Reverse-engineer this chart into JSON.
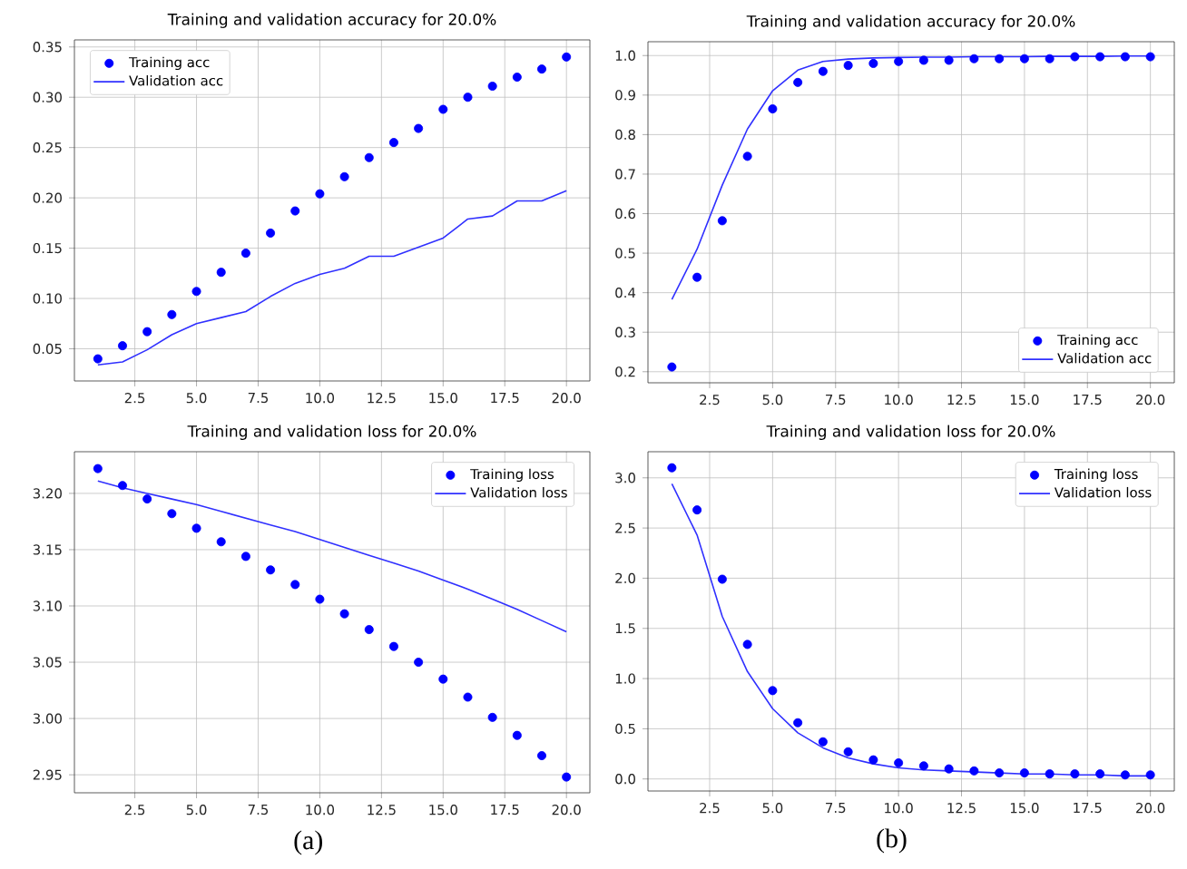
{
  "chart_data": [
    {
      "type": "line",
      "title": "Training and validation accuracy for 20.0%",
      "x": [
        1,
        2,
        3,
        4,
        5,
        6,
        7,
        8,
        9,
        10,
        11,
        12,
        13,
        14,
        15,
        16,
        17,
        18,
        19,
        20
      ],
      "xlim": [
        0.05,
        20.95
      ],
      "ylim": [
        0.018,
        0.357
      ],
      "xticks": [
        {
          "value": 2.5,
          "label": "2.5"
        },
        {
          "value": 5,
          "label": "5.0"
        },
        {
          "value": 7.5,
          "label": "7.5"
        },
        {
          "value": 10,
          "label": "10.0"
        },
        {
          "value": 12.5,
          "label": "12.5"
        },
        {
          "value": 15,
          "label": "15.0"
        },
        {
          "value": 17.5,
          "label": "17.5"
        },
        {
          "value": 20,
          "label": "20.0"
        }
      ],
      "yticks": [
        0.05,
        {
          "value": 0.1,
          "label": "0.10"
        },
        0.15,
        {
          "value": 0.2,
          "label": "0.20"
        },
        0.25,
        {
          "value": 0.3,
          "label": "0.30"
        },
        0.35
      ],
      "grid": true,
      "legend": "top left",
      "series": [
        {
          "name": "Training acc",
          "type": "scatter",
          "marker": "circle",
          "color": "#0000ff",
          "values": [
            0.04,
            0.053,
            0.067,
            0.084,
            0.107,
            0.126,
            0.145,
            0.165,
            0.187,
            0.204,
            0.221,
            0.24,
            0.255,
            0.269,
            0.288,
            0.3,
            0.311,
            0.32,
            0.328,
            0.34
          ]
        },
        {
          "name": "Validation acc",
          "type": "line",
          "color": "#3030ff",
          "values": [
            0.034,
            0.037,
            0.049,
            0.064,
            0.075,
            0.081,
            0.087,
            0.102,
            0.115,
            0.124,
            0.13,
            0.142,
            0.142,
            0.151,
            0.16,
            0.179,
            0.182,
            0.197,
            0.197,
            0.207
          ]
        }
      ]
    },
    {
      "type": "line",
      "title": "Training and validation accuracy for 20.0%",
      "x": [
        1,
        2,
        3,
        4,
        5,
        6,
        7,
        8,
        9,
        10,
        11,
        12,
        13,
        14,
        15,
        16,
        17,
        18,
        19,
        20
      ],
      "xlim": [
        0.05,
        20.95
      ],
      "ylim": [
        0.172,
        1.035
      ],
      "xticks": [
        {
          "value": 2.5,
          "label": "2.5"
        },
        {
          "value": 5,
          "label": "5.0"
        },
        {
          "value": 7.5,
          "label": "7.5"
        },
        {
          "value": 10,
          "label": "10.0"
        },
        {
          "value": 12.5,
          "label": "12.5"
        },
        {
          "value": 15,
          "label": "15.0"
        },
        {
          "value": 17.5,
          "label": "17.5"
        },
        {
          "value": 20,
          "label": "20.0"
        }
      ],
      "yticks": [
        0.2,
        0.3,
        0.4,
        0.5,
        0.6,
        0.7,
        0.8,
        0.9,
        {
          "value": 1,
          "label": "1.0"
        }
      ],
      "grid": true,
      "legend": "bottom right",
      "series": [
        {
          "name": "Training acc",
          "type": "scatter",
          "marker": "circle",
          "color": "#0000ff",
          "values": [
            0.212,
            0.439,
            0.582,
            0.745,
            0.865,
            0.932,
            0.96,
            0.975,
            0.98,
            0.985,
            0.988,
            0.988,
            0.992,
            0.992,
            0.992,
            0.992,
            0.997,
            0.997,
            0.997,
            0.997
          ]
        },
        {
          "name": "Validation acc",
          "type": "line",
          "color": "#3030ff",
          "values": [
            0.383,
            0.51,
            0.672,
            0.814,
            0.911,
            0.963,
            0.985,
            0.991,
            0.994,
            0.995,
            0.996,
            0.996,
            0.997,
            0.997,
            0.997,
            0.998,
            0.998,
            0.998,
            0.999,
            0.999
          ]
        }
      ]
    },
    {
      "type": "line",
      "title": "Training and validation loss for 20.0%",
      "x": [
        1,
        2,
        3,
        4,
        5,
        6,
        7,
        8,
        9,
        10,
        11,
        12,
        13,
        14,
        15,
        16,
        17,
        18,
        19,
        20
      ],
      "xlim": [
        0.05,
        20.95
      ],
      "ylim": [
        2.934,
        3.237
      ],
      "xticks": [
        {
          "value": 2.5,
          "label": "2.5"
        },
        {
          "value": 5,
          "label": "5.0"
        },
        {
          "value": 7.5,
          "label": "7.5"
        },
        {
          "value": 10,
          "label": "10.0"
        },
        {
          "value": 12.5,
          "label": "12.5"
        },
        {
          "value": 15,
          "label": "15.0"
        },
        {
          "value": 17.5,
          "label": "17.5"
        },
        {
          "value": 20,
          "label": "20.0"
        }
      ],
      "yticks": [
        2.95,
        {
          "value": 3,
          "label": "3.00"
        },
        3.05,
        {
          "value": 3.1,
          "label": "3.10"
        },
        3.15,
        {
          "value": 3.2,
          "label": "3.20"
        }
      ],
      "grid": true,
      "legend": "top right",
      "annotations": [
        "(a)"
      ],
      "series": [
        {
          "name": "Training loss",
          "type": "scatter",
          "marker": "circle",
          "color": "#0000ff",
          "values": [
            3.222,
            3.207,
            3.195,
            3.182,
            3.169,
            3.157,
            3.144,
            3.132,
            3.119,
            3.106,
            3.093,
            3.079,
            3.064,
            3.05,
            3.035,
            3.019,
            3.001,
            2.985,
            2.967,
            2.948
          ]
        },
        {
          "name": "Validation loss",
          "type": "line",
          "color": "#3030ff",
          "values": [
            3.211,
            3.205,
            3.2,
            3.195,
            3.19,
            3.184,
            3.178,
            3.172,
            3.166,
            3.159,
            3.152,
            3.145,
            3.138,
            3.131,
            3.123,
            3.115,
            3.106,
            3.097,
            3.087,
            3.077
          ]
        }
      ]
    },
    {
      "type": "line",
      "title": "Training and validation loss for 20.0%",
      "x": [
        1,
        2,
        3,
        4,
        5,
        6,
        7,
        8,
        9,
        10,
        11,
        12,
        13,
        14,
        15,
        16,
        17,
        18,
        19,
        20
      ],
      "xlim": [
        0.05,
        20.95
      ],
      "ylim": [
        -0.12,
        3.26
      ],
      "xticks": [
        {
          "value": 2.5,
          "label": "2.5"
        },
        {
          "value": 5,
          "label": "5.0"
        },
        {
          "value": 7.5,
          "label": "7.5"
        },
        {
          "value": 10,
          "label": "10.0"
        },
        {
          "value": 12.5,
          "label": "12.5"
        },
        {
          "value": 15,
          "label": "15.0"
        },
        {
          "value": 17.5,
          "label": "17.5"
        },
        {
          "value": 20,
          "label": "20.0"
        }
      ],
      "yticks": [
        {
          "value": 0,
          "label": "0.0"
        },
        0.5,
        {
          "value": 1,
          "label": "1.0"
        },
        1.5,
        {
          "value": 2,
          "label": "2.0"
        },
        2.5,
        {
          "value": 3,
          "label": "3.0"
        }
      ],
      "grid": true,
      "legend": "top right",
      "annotations": [
        "(b)"
      ],
      "series": [
        {
          "name": "Training loss",
          "type": "scatter",
          "marker": "circle",
          "color": "#0000ff",
          "values": [
            3.1,
            2.68,
            1.99,
            1.34,
            0.88,
            0.56,
            0.37,
            0.27,
            0.19,
            0.16,
            0.13,
            0.1,
            0.08,
            0.06,
            0.06,
            0.05,
            0.05,
            0.05,
            0.04,
            0.04
          ]
        },
        {
          "name": "Validation loss",
          "type": "line",
          "color": "#3030ff",
          "values": [
            2.94,
            2.43,
            1.62,
            1.07,
            0.7,
            0.46,
            0.31,
            0.21,
            0.15,
            0.11,
            0.09,
            0.08,
            0.07,
            0.06,
            0.05,
            0.05,
            0.04,
            0.04,
            0.03,
            0.03
          ]
        }
      ]
    }
  ]
}
